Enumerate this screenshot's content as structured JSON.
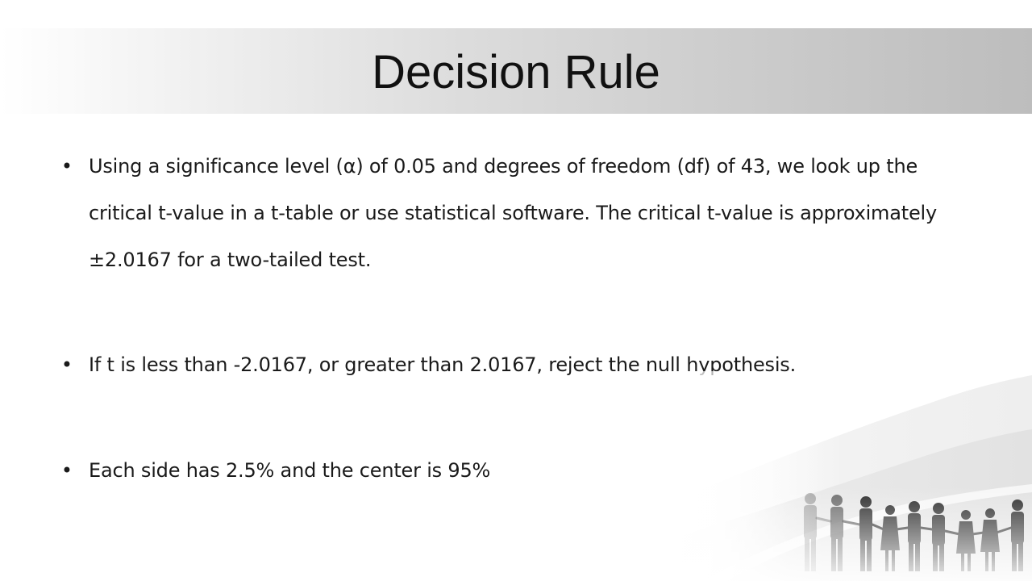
{
  "slide": {
    "title": "Decision Rule",
    "bullet_glyph": "•",
    "bullets": [
      "Using a significance level (α) of 0.05 and degrees of freedom (df) of 43, we look up the critical t-value in a t-table or use statistical software. The critical t-value is approximately ±2.0167 for a two-tailed test.",
      "If t is less than -2.0167, or greater than 2.0167, reject the null hypothesis.",
      "Each side has 2.5% and the center is 95%"
    ]
  },
  "decor": {
    "icon": "people-holding-hands-silhouette",
    "colors": {
      "band_dark": "#bdbdbd",
      "band_light": "#ffffff",
      "wave": "#e6e6e6",
      "figures": "#2a2a2a"
    }
  }
}
